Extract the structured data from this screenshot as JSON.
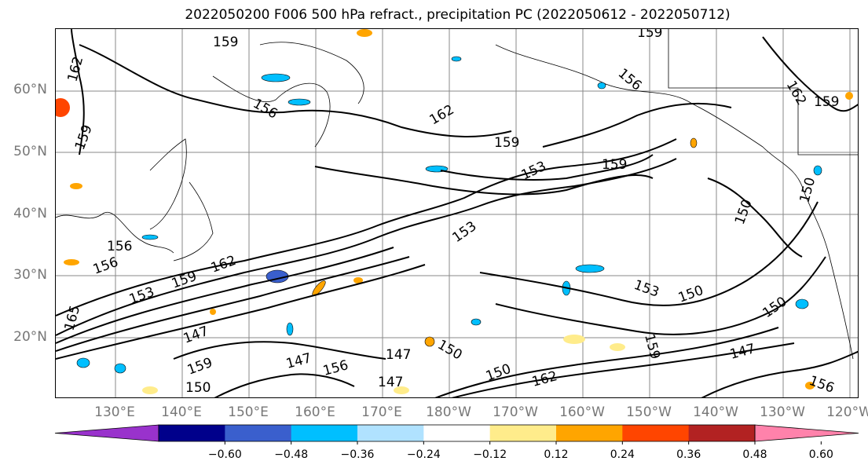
{
  "title": "2022050200 F006 500 hPa refract., precipitation PC (2022050612 - 2022050712)",
  "lat_labels": [
    "60°N",
    "50°N",
    "40°N",
    "30°N",
    "20°N"
  ],
  "lon_labels": [
    "130°E",
    "140°E",
    "150°E",
    "160°E",
    "170°E",
    "180°W",
    "170°W",
    "160°W",
    "150°W",
    "140°W",
    "130°W",
    "120°W"
  ],
  "contour_labels": [
    "159",
    "162",
    "159",
    "156",
    "159",
    "162",
    "159",
    "156",
    "162",
    "159",
    "153",
    "159",
    "153",
    "156",
    "150",
    "150",
    "162",
    "156",
    "153",
    "159",
    "153",
    "150",
    "150",
    "147",
    "150",
    "147",
    "147",
    "150",
    "162",
    "159",
    "147",
    "156",
    "147",
    "150",
    "165",
    "159",
    "156"
  ],
  "colorbar": {
    "colors": [
      "#9932cc",
      "#00008b",
      "#3a5fcd",
      "#00bfff",
      "#b0e2ff",
      "#ffffff",
      "#ffec8b",
      "#ffa500",
      "#ff4500",
      "#b22222",
      "#ff82ab"
    ],
    "ticks": [
      "−0.60",
      "−0.48",
      "−0.36",
      "−0.24",
      "−0.12",
      "0.12",
      "0.24",
      "0.36",
      "0.48",
      "0.60"
    ]
  },
  "legend_placement": "bottom",
  "grid": true
}
